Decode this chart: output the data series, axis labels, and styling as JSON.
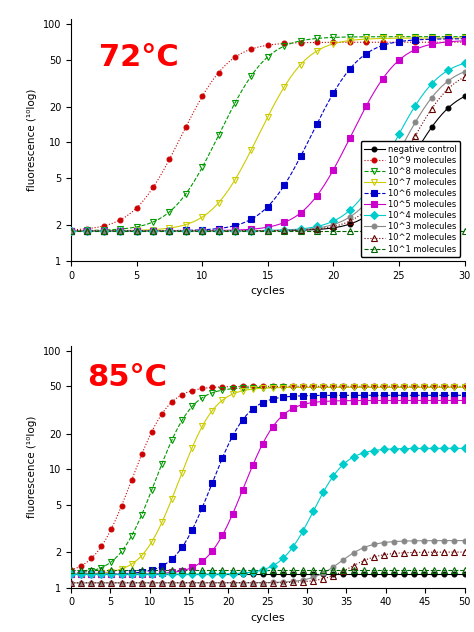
{
  "title72": "72°C",
  "title85": "85°C",
  "ylabel": "fluorescence (¹⁰log)",
  "xlabel": "cycles",
  "series": [
    {
      "label": "negative control",
      "color": "#000000",
      "marker": "o",
      "linestyle": "-",
      "plateau72": 30,
      "midpoint72": 28,
      "plateau85": 1.3,
      "midpoint85": 999
    },
    {
      "label": "10^9 molecules",
      "color": "#cc0000",
      "marker": "o",
      "linestyle": ":",
      "plateau72": 70,
      "midpoint72": 11,
      "plateau85": 50,
      "midpoint85": 11
    },
    {
      "label": "10^8 molecules",
      "color": "#009900",
      "marker": "v",
      "linestyle": "--",
      "plateau72": 78,
      "midpoint72": 14,
      "plateau85": 49,
      "midpoint85": 14
    },
    {
      "label": "10^7 molecules",
      "color": "#cccc00",
      "marker": "v",
      "linestyle": "-",
      "plateau72": 76,
      "midpoint72": 17,
      "plateau85": 49,
      "midpoint85": 17
    },
    {
      "label": "10^6 molecules",
      "color": "#0000cc",
      "marker": "s",
      "linestyle": "--",
      "plateau72": 75,
      "midpoint72": 21,
      "plateau85": 42,
      "midpoint85": 21
    },
    {
      "label": "10^5 molecules",
      "color": "#cc00cc",
      "marker": "s",
      "linestyle": "-",
      "plateau72": 73,
      "midpoint72": 24,
      "plateau85": 38,
      "midpoint85": 25
    },
    {
      "label": "10^4 molecules",
      "color": "#00cccc",
      "marker": "D",
      "linestyle": "-",
      "plateau72": 52,
      "midpoint72": 27,
      "plateau85": 15,
      "midpoint85": 33
    },
    {
      "label": "10^3 molecules",
      "color": "#888888",
      "marker": "o",
      "linestyle": "-",
      "plateau72": 46,
      "midpoint72": 27.5,
      "plateau85": 2.5,
      "midpoint85": 35
    },
    {
      "label": "10^2 molecules",
      "color": "#660000",
      "marker": "^",
      "linestyle": ":",
      "plateau72": 44,
      "midpoint72": 28,
      "plateau85": 2.0,
      "midpoint85": 36
    },
    {
      "label": "10^1 molecules",
      "color": "#006600",
      "marker": "^",
      "linestyle": "--",
      "plateau72": 1.8,
      "midpoint72": 999,
      "plateau85": 1.4,
      "midpoint85": 999
    }
  ],
  "xlim72": [
    0,
    30
  ],
  "xlim85": [
    0,
    50
  ],
  "ylim": [
    1,
    110
  ],
  "xticks72": [
    0,
    5,
    10,
    15,
    20,
    25,
    30
  ],
  "xticks85": [
    0,
    5,
    10,
    15,
    20,
    25,
    30,
    35,
    40,
    45,
    50
  ],
  "yticks": [
    1,
    2,
    5,
    10,
    20,
    50,
    100
  ],
  "background": "#ffffff",
  "baselines72": [
    1.8,
    1.8,
    1.8,
    1.8,
    1.8,
    1.8,
    1.8,
    1.8,
    1.8,
    1.8
  ],
  "baselines85": [
    1.3,
    1.3,
    1.3,
    1.3,
    1.3,
    1.3,
    1.3,
    1.1,
    1.1,
    1.2
  ]
}
